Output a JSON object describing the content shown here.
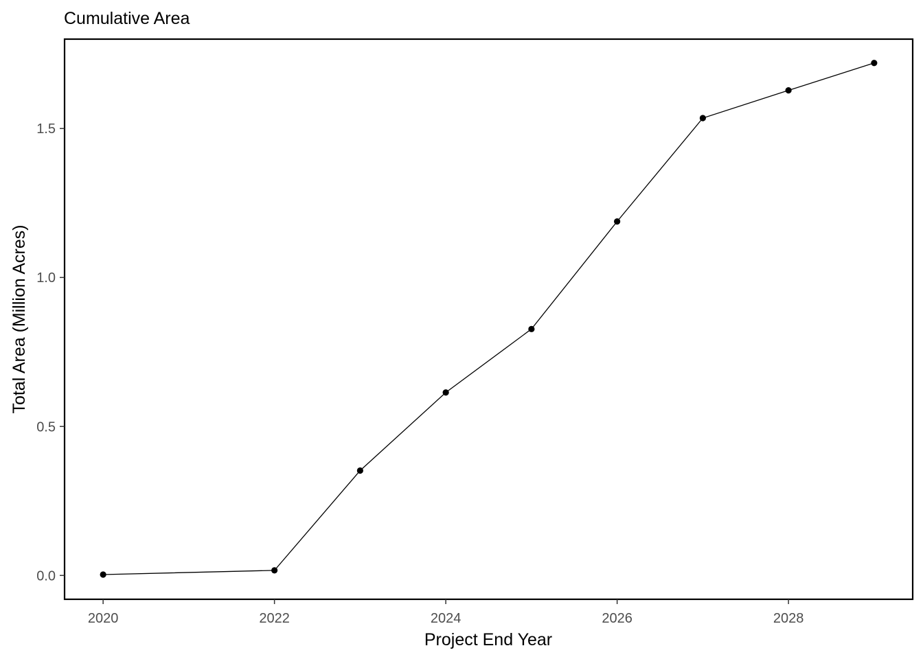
{
  "chart_data": {
    "type": "line",
    "title": "Cumulative Area",
    "xlabel": "Project End Year",
    "ylabel": "Total Area (Million Acres)",
    "x": [
      2020,
      2022,
      2023,
      2024,
      2025,
      2026,
      2027,
      2028,
      2029
    ],
    "series": [
      {
        "values": [
          0.003,
          0.017,
          0.352,
          0.614,
          0.827,
          1.188,
          1.535,
          1.628,
          1.72
        ]
      }
    ],
    "xlim": [
      2019.55,
      2029.45
    ],
    "ylim": [
      -0.08,
      1.8
    ],
    "xticks": [
      2020,
      2022,
      2024,
      2026,
      2028
    ],
    "xtick_labels": [
      "2020",
      "2022",
      "2024",
      "2026",
      "2028"
    ],
    "yticks": [
      0.0,
      0.5,
      1.0,
      1.5
    ],
    "ytick_labels": [
      "0.0",
      "0.5",
      "1.0",
      "1.5"
    ],
    "grid": false,
    "legend": "none",
    "line_color": "#000000",
    "point_color": "#000000"
  }
}
